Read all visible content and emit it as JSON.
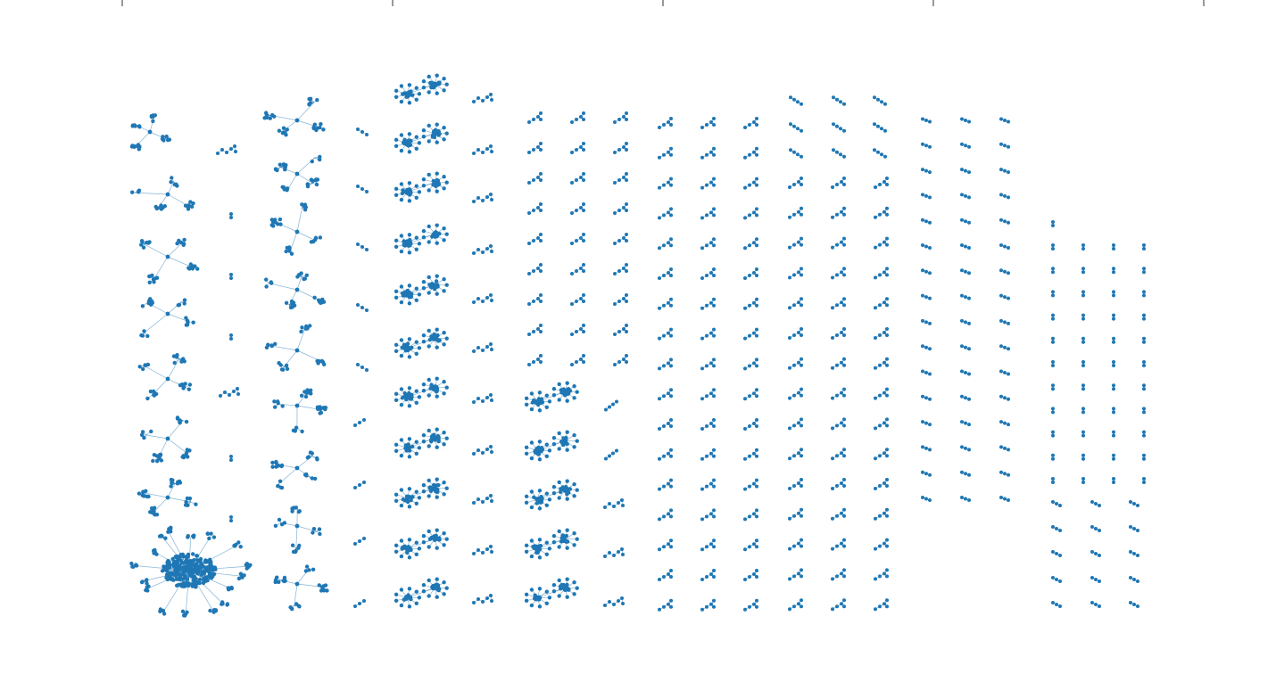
{
  "figure": {
    "kind": "network-components-layout",
    "node_color": "#1f77b4",
    "edge_color": "#1f77b4",
    "background": "#ffffff",
    "top_axis_ticks": 5,
    "tick_labels_visible": false,
    "components_per_column": [
      [
        1,
        7,
        8
      ],
      [
        1,
        2,
        7,
        9
      ],
      [
        10,
        11
      ],
      [
        8,
        4
      ],
      [
        8
      ],
      [
        12,
        4
      ],
      [
        16,
        16,
        16
      ],
      [
        16,
        17,
        17
      ],
      [
        10,
        10,
        7
      ],
      [
        1,
        10,
        10,
        10,
        10
      ],
      [
        5,
        5,
        5
      ]
    ]
  }
}
